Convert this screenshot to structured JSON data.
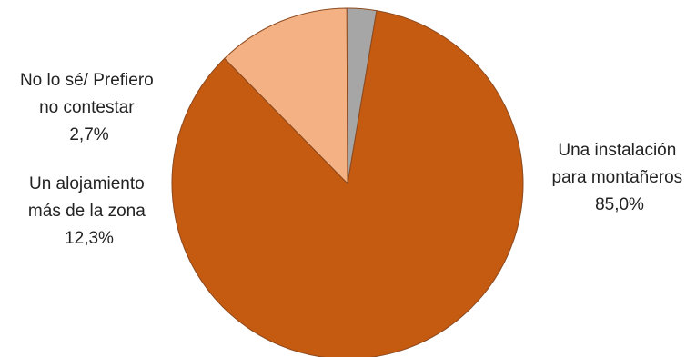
{
  "chart_data": {
    "type": "pie",
    "title": "",
    "start_angle_deg": -80.5,
    "direction": "clockwise",
    "slices": [
      {
        "label_lines": [
          "Una instalación",
          "para montañeros"
        ],
        "value_text": "85,0%",
        "value": 85.0,
        "color": "#C55A11"
      },
      {
        "label_lines": [
          "Un alojamiento",
          "más de la zona"
        ],
        "value_text": "12,3%",
        "value": 12.3,
        "color": "#F4B183"
      },
      {
        "label_lines": [
          "No lo sé/ Prefiero",
          "no contestar"
        ],
        "value_text": "2,7%",
        "value": 2.7,
        "color": "#A6A6A6"
      }
    ],
    "stroke_color": "#8C4A1F"
  }
}
